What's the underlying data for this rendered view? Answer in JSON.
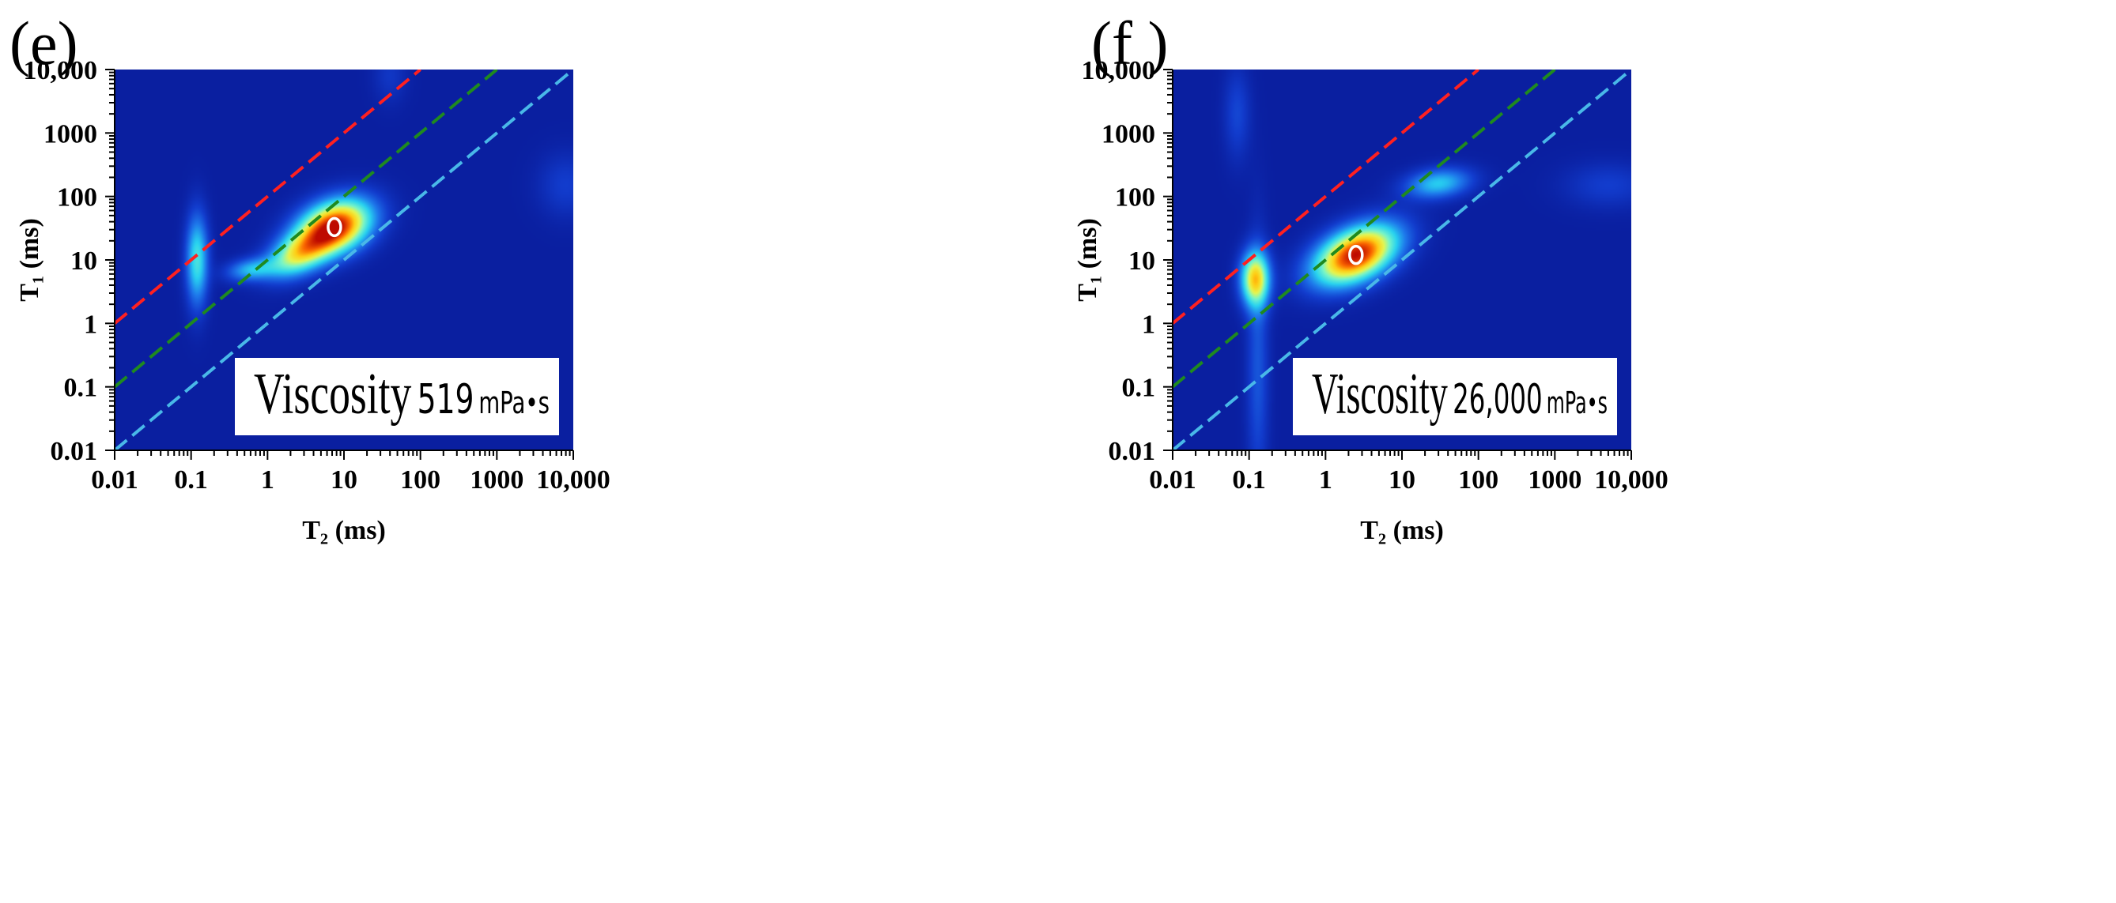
{
  "chart_data": [
    {
      "panel": "(e)",
      "type": "heatmap",
      "title": "",
      "xlabel": "T₂ (ms)",
      "ylabel": "T₁ (ms)",
      "xscale": "log",
      "yscale": "log",
      "xlim": [
        0.01,
        10000
      ],
      "ylim": [
        0.01,
        10000
      ],
      "xticklabels": [
        "0.01",
        "0.1",
        "1",
        "10",
        "100",
        "1000",
        "10,000"
      ],
      "yticklabels": [
        "0.01",
        "0.1",
        "1",
        "10",
        "100",
        "1000",
        "10,000"
      ],
      "reference_lines": [
        {
          "name": "T1/T2 = 100",
          "ratio": 100,
          "color": "#ff2020",
          "style": "dashed"
        },
        {
          "name": "T1/T2 = 10",
          "ratio": 10,
          "color": "#1f8a1f",
          "style": "dashed"
        },
        {
          "name": "T1/T2 = 1",
          "ratio": 1,
          "color": "#49b8e8",
          "style": "dashed"
        }
      ],
      "peaks": [
        {
          "T2": 7.5,
          "T1": 33,
          "spread_x": 0.36,
          "spread_y": 0.26,
          "rotation": 36,
          "amplitude": 1.0
        },
        {
          "T2": 2.5,
          "T1": 12,
          "spread_x": 0.32,
          "spread_y": 0.2,
          "rotation": 38,
          "amplitude": 0.55
        },
        {
          "T2": 0.12,
          "T1": 10,
          "spread_x": 0.1,
          "spread_y": 0.5,
          "rotation": 0,
          "amplitude": 0.42
        },
        {
          "T2": 0.6,
          "T1": 7,
          "spread_x": 0.22,
          "spread_y": 0.12,
          "rotation": 10,
          "amplitude": 0.3
        },
        {
          "T2": 8000,
          "T1": 150,
          "spread_x": 0.25,
          "spread_y": 0.35,
          "rotation": 0,
          "amplitude": 0.1
        },
        {
          "T2": 40,
          "T1": 8000,
          "spread_x": 0.15,
          "spread_y": 0.3,
          "rotation": 0,
          "amplitude": 0.08
        }
      ],
      "marker": {
        "T2": 7.5,
        "T1": 33
      },
      "annotation": {
        "label": "Viscosity",
        "value": "519",
        "unit": "mPa•s"
      }
    },
    {
      "panel": "(f )",
      "type": "heatmap",
      "title": "",
      "xlabel": "T₂ (ms)",
      "ylabel": "T₁ (ms)",
      "xscale": "log",
      "yscale": "log",
      "xlim": [
        0.01,
        10000
      ],
      "ylim": [
        0.01,
        10000
      ],
      "xticklabels": [
        "0.01",
        "0.1",
        "1",
        "10",
        "100",
        "1000",
        "10,000"
      ],
      "yticklabels": [
        "0.01",
        "0.1",
        "1",
        "10",
        "100",
        "1000",
        "10,000"
      ],
      "reference_lines": [
        {
          "name": "T1/T2 = 100",
          "ratio": 100,
          "color": "#ff2020",
          "style": "dashed"
        },
        {
          "name": "T1/T2 = 10",
          "ratio": 10,
          "color": "#1f8a1f",
          "style": "dashed"
        },
        {
          "name": "T1/T2 = 1",
          "ratio": 1,
          "color": "#49b8e8",
          "style": "dashed"
        }
      ],
      "peaks": [
        {
          "T2": 2.5,
          "T1": 12,
          "spread_x": 0.42,
          "spread_y": 0.26,
          "rotation": 36,
          "amplitude": 1.0
        },
        {
          "T2": 0.12,
          "T1": 5,
          "spread_x": 0.13,
          "spread_y": 0.3,
          "rotation": 0,
          "amplitude": 0.68
        },
        {
          "T2": 30,
          "T1": 160,
          "spread_x": 0.3,
          "spread_y": 0.16,
          "rotation": 10,
          "amplitude": 0.35
        },
        {
          "T2": 0.13,
          "T1": 0.2,
          "spread_x": 0.1,
          "spread_y": 1.4,
          "rotation": 0,
          "amplitude": 0.15
        },
        {
          "T2": 0.07,
          "T1": 2000,
          "spread_x": 0.12,
          "spread_y": 0.5,
          "rotation": 0,
          "amplitude": 0.12
        },
        {
          "T2": 5000,
          "T1": 150,
          "spread_x": 0.4,
          "spread_y": 0.25,
          "rotation": 0,
          "amplitude": 0.1
        }
      ],
      "marker": {
        "T2": 2.5,
        "T1": 12
      },
      "annotation": {
        "label": "Viscosity",
        "value": "26,000",
        "unit": "mPa•s"
      }
    }
  ],
  "colors": {
    "background": "#0a1fa0",
    "marker": "#ffffff",
    "annotation_box": "#ffffff"
  }
}
